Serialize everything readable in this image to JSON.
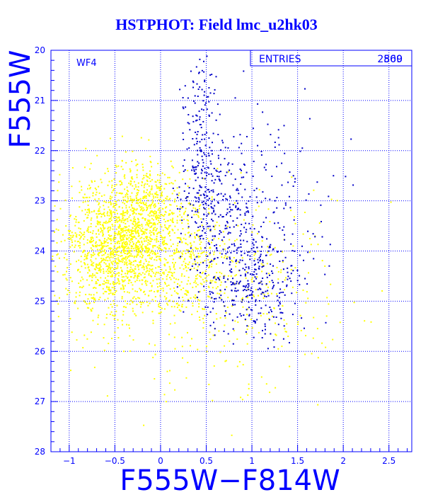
{
  "chart_data": {
    "type": "scatter",
    "title": "HSTPHOT: Field lmc_u2hk03",
    "xlabel": "F555W−F814W",
    "ylabel": "F555W",
    "xlim": [
      -1.2,
      2.75
    ],
    "ylim": [
      28,
      20
    ],
    "y_inverted": true,
    "x_ticks": [
      -1,
      -0.5,
      0,
      0.5,
      1,
      1.5,
      2,
      2.5
    ],
    "x_tick_labels": [
      "−1",
      "−0.5",
      "0",
      "0.5",
      "1",
      "1.5",
      "2",
      "2.5"
    ],
    "y_ticks": [
      20,
      21,
      22,
      23,
      24,
      25,
      26,
      27,
      28
    ],
    "y_tick_labels": [
      "20",
      "21",
      "22",
      "23",
      "24",
      "25",
      "26",
      "27",
      "28"
    ],
    "grid": true,
    "field_label": "WF4",
    "stats_box": {
      "label": "ENTRIES",
      "values": [
        "2509",
        "860"
      ],
      "position": "top-right"
    },
    "series": [
      {
        "color": "#ffff00",
        "entries": 2509,
        "clusters": [
          {
            "n": 1500,
            "cx": -0.45,
            "cy": 23.9,
            "sx": 0.32,
            "sy": 0.65
          },
          {
            "n": 420,
            "cx": -0.15,
            "cy": 23.2,
            "sx": 0.2,
            "sy": 0.5
          },
          {
            "n": 300,
            "cx": 0.35,
            "cy": 24.3,
            "sx": 0.18,
            "sy": 0.7
          },
          {
            "n": 200,
            "cx": 1.05,
            "cy": 24.6,
            "sx": 0.45,
            "sy": 0.9
          },
          {
            "n": 89,
            "cx": 0.2,
            "cy": 25.5,
            "sx": 1.0,
            "sy": 1.1
          }
        ]
      },
      {
        "color": "#0000c8",
        "entries": 860,
        "clusters": [
          {
            "n": 180,
            "cx": 0.42,
            "cy": 21.8,
            "sx": 0.1,
            "sy": 1.0
          },
          {
            "n": 220,
            "cx": 0.62,
            "cy": 23.2,
            "sx": 0.18,
            "sy": 0.7
          },
          {
            "n": 300,
            "cx": 1.0,
            "cy": 24.6,
            "sx": 0.28,
            "sy": 0.55
          },
          {
            "n": 160,
            "cx": 1.1,
            "cy": 23.0,
            "sx": 0.35,
            "sy": 1.2
          }
        ]
      }
    ]
  }
}
